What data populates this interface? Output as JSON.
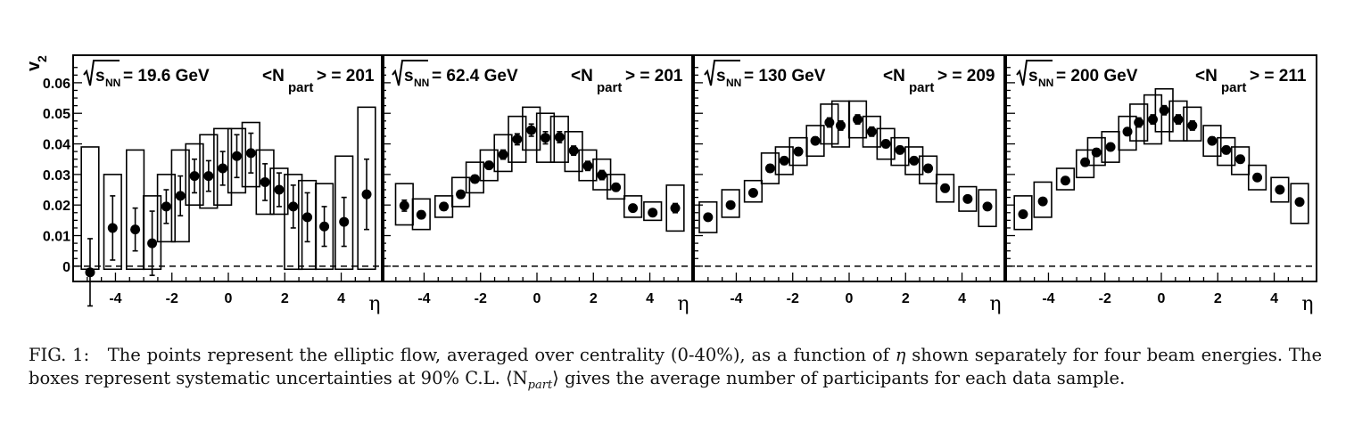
{
  "chart_data": {
    "type": "scatter",
    "y_axis_label": "v",
    "y_axis_label_sub": "2",
    "x_axis_label": "η",
    "xlim": [
      -5.5,
      5.5
    ],
    "ylim": [
      -0.005,
      0.069
    ],
    "x_ticks": [
      -4,
      -2,
      0,
      2,
      4
    ],
    "x_tick_labels": [
      "-4",
      "-2",
      "0",
      "2",
      "4"
    ],
    "y_ticks": [
      0,
      0.01,
      0.02,
      0.03,
      0.04,
      0.05,
      0.06
    ],
    "y_tick_labels": [
      "0",
      "0.01",
      "0.02",
      "0.03",
      "0.04",
      "0.05",
      "0.06"
    ],
    "reference_line": {
      "y": 0,
      "style": "dashed"
    },
    "panels": [
      {
        "energy_value": "19.6 GeV",
        "npart_value": "201",
        "points": [
          {
            "x": -4.9,
            "y": -0.002,
            "err": 0.011,
            "box_lo": -0.001,
            "box_hi": 0.039
          },
          {
            "x": -4.1,
            "y": 0.0125,
            "err": 0.0105,
            "box_lo": -0.001,
            "box_hi": 0.03
          },
          {
            "x": -3.3,
            "y": 0.012,
            "err": 0.007,
            "box_lo": -0.001,
            "box_hi": 0.038
          },
          {
            "x": -2.7,
            "y": 0.0075,
            "err": 0.0105,
            "box_lo": -0.001,
            "box_hi": 0.023
          },
          {
            "x": -2.2,
            "y": 0.0195,
            "err": 0.0055,
            "box_lo": 0.008,
            "box_hi": 0.03
          },
          {
            "x": -1.7,
            "y": 0.023,
            "err": 0.0065,
            "box_lo": 0.008,
            "box_hi": 0.038
          },
          {
            "x": -1.2,
            "y": 0.0295,
            "err": 0.0055,
            "box_lo": 0.02,
            "box_hi": 0.04
          },
          {
            "x": -0.7,
            "y": 0.0295,
            "err": 0.005,
            "box_lo": 0.019,
            "box_hi": 0.043
          },
          {
            "x": -0.2,
            "y": 0.032,
            "err": 0.0055,
            "box_lo": 0.02,
            "box_hi": 0.045
          },
          {
            "x": 0.3,
            "y": 0.036,
            "err": 0.007,
            "box_lo": 0.024,
            "box_hi": 0.045
          },
          {
            "x": 0.8,
            "y": 0.037,
            "err": 0.0065,
            "box_lo": 0.026,
            "box_hi": 0.047
          },
          {
            "x": 1.3,
            "y": 0.0275,
            "err": 0.006,
            "box_lo": 0.017,
            "box_hi": 0.038
          },
          {
            "x": 1.8,
            "y": 0.025,
            "err": 0.0055,
            "box_lo": 0.017,
            "box_hi": 0.032
          },
          {
            "x": 2.3,
            "y": 0.0195,
            "err": 0.007,
            "box_lo": -0.001,
            "box_hi": 0.03
          },
          {
            "x": 2.8,
            "y": 0.016,
            "err": 0.008,
            "box_lo": -0.001,
            "box_hi": 0.028
          },
          {
            "x": 3.4,
            "y": 0.013,
            "err": 0.0065,
            "box_lo": -0.001,
            "box_hi": 0.027
          },
          {
            "x": 4.1,
            "y": 0.0145,
            "err": 0.008,
            "box_lo": -0.001,
            "box_hi": 0.036
          },
          {
            "x": 4.9,
            "y": 0.0235,
            "err": 0.0115,
            "box_lo": -0.001,
            "box_hi": 0.052
          }
        ]
      },
      {
        "energy_value": "62.4 GeV",
        "npart_value": "201",
        "points": [
          {
            "x": -4.7,
            "y": 0.0198,
            "err": 0.0018,
            "box_lo": 0.0135,
            "box_hi": 0.027
          },
          {
            "x": -4.1,
            "y": 0.0168,
            "err": 0.0012,
            "box_lo": 0.012,
            "box_hi": 0.022
          },
          {
            "x": -3.3,
            "y": 0.0195,
            "err": 0.0012,
            "box_lo": 0.016,
            "box_hi": 0.023
          },
          {
            "x": -2.7,
            "y": 0.0235,
            "err": 0.0012,
            "box_lo": 0.0195,
            "box_hi": 0.029
          },
          {
            "x": -2.2,
            "y": 0.0285,
            "err": 0.0012,
            "box_lo": 0.024,
            "box_hi": 0.034
          },
          {
            "x": -1.7,
            "y": 0.033,
            "err": 0.0012,
            "box_lo": 0.028,
            "box_hi": 0.038
          },
          {
            "x": -1.2,
            "y": 0.0365,
            "err": 0.0015,
            "box_lo": 0.031,
            "box_hi": 0.043
          },
          {
            "x": -0.7,
            "y": 0.0415,
            "err": 0.0018,
            "box_lo": 0.034,
            "box_hi": 0.049
          },
          {
            "x": -0.2,
            "y": 0.0445,
            "err": 0.002,
            "box_lo": 0.038,
            "box_hi": 0.052
          },
          {
            "x": 0.3,
            "y": 0.042,
            "err": 0.002,
            "box_lo": 0.034,
            "box_hi": 0.05
          },
          {
            "x": 0.8,
            "y": 0.0422,
            "err": 0.0018,
            "box_lo": 0.034,
            "box_hi": 0.049
          },
          {
            "x": 1.3,
            "y": 0.0378,
            "err": 0.0015,
            "box_lo": 0.031,
            "box_hi": 0.044
          },
          {
            "x": 1.8,
            "y": 0.0328,
            "err": 0.0015,
            "box_lo": 0.028,
            "box_hi": 0.038
          },
          {
            "x": 2.3,
            "y": 0.0298,
            "err": 0.0015,
            "box_lo": 0.025,
            "box_hi": 0.035
          },
          {
            "x": 2.8,
            "y": 0.0258,
            "err": 0.0012,
            "box_lo": 0.022,
            "box_hi": 0.03
          },
          {
            "x": 3.4,
            "y": 0.019,
            "err": 0.001,
            "box_lo": 0.016,
            "box_hi": 0.023
          },
          {
            "x": 4.1,
            "y": 0.0175,
            "err": 0.001,
            "box_lo": 0.015,
            "box_hi": 0.021
          },
          {
            "x": 4.9,
            "y": 0.019,
            "err": 0.0015,
            "box_lo": 0.0115,
            "box_hi": 0.0265
          }
        ]
      },
      {
        "energy_value": "130 GeV",
        "npart_value": "209",
        "points": [
          {
            "x": -5.0,
            "y": 0.016,
            "err": 0.001,
            "box_lo": 0.011,
            "box_hi": 0.021
          },
          {
            "x": -4.2,
            "y": 0.02,
            "err": 0.001,
            "box_lo": 0.016,
            "box_hi": 0.025
          },
          {
            "x": -3.4,
            "y": 0.024,
            "err": 0.001,
            "box_lo": 0.021,
            "box_hi": 0.028
          },
          {
            "x": -2.8,
            "y": 0.032,
            "err": 0.0012,
            "box_lo": 0.027,
            "box_hi": 0.037
          },
          {
            "x": -2.3,
            "y": 0.0345,
            "err": 0.0012,
            "box_lo": 0.03,
            "box_hi": 0.039
          },
          {
            "x": -1.8,
            "y": 0.0375,
            "err": 0.0012,
            "box_lo": 0.033,
            "box_hi": 0.042
          },
          {
            "x": -1.2,
            "y": 0.041,
            "err": 0.0012,
            "box_lo": 0.036,
            "box_hi": 0.046
          },
          {
            "x": -0.7,
            "y": 0.047,
            "err": 0.0015,
            "box_lo": 0.04,
            "box_hi": 0.053
          },
          {
            "x": -0.3,
            "y": 0.046,
            "err": 0.0015,
            "box_lo": 0.039,
            "box_hi": 0.054
          },
          {
            "x": 0.3,
            "y": 0.048,
            "err": 0.0015,
            "box_lo": 0.042,
            "box_hi": 0.054
          },
          {
            "x": 0.8,
            "y": 0.044,
            "err": 0.0015,
            "box_lo": 0.039,
            "box_hi": 0.049
          },
          {
            "x": 1.3,
            "y": 0.04,
            "err": 0.0012,
            "box_lo": 0.035,
            "box_hi": 0.045
          },
          {
            "x": 1.8,
            "y": 0.038,
            "err": 0.0012,
            "box_lo": 0.033,
            "box_hi": 0.042
          },
          {
            "x": 2.3,
            "y": 0.0345,
            "err": 0.0012,
            "box_lo": 0.03,
            "box_hi": 0.039
          },
          {
            "x": 2.8,
            "y": 0.032,
            "err": 0.0012,
            "box_lo": 0.027,
            "box_hi": 0.036
          },
          {
            "x": 3.4,
            "y": 0.0255,
            "err": 0.001,
            "box_lo": 0.021,
            "box_hi": 0.03
          },
          {
            "x": 4.2,
            "y": 0.022,
            "err": 0.001,
            "box_lo": 0.018,
            "box_hi": 0.026
          },
          {
            "x": 4.9,
            "y": 0.0195,
            "err": 0.001,
            "box_lo": 0.013,
            "box_hi": 0.025
          }
        ]
      },
      {
        "energy_value": "200 GeV",
        "npart_value": "211",
        "points": [
          {
            "x": -4.9,
            "y": 0.017,
            "err": 0.001,
            "box_lo": 0.012,
            "box_hi": 0.023
          },
          {
            "x": -4.2,
            "y": 0.0212,
            "err": 0.001,
            "box_lo": 0.016,
            "box_hi": 0.0275
          },
          {
            "x": -3.4,
            "y": 0.028,
            "err": 0.001,
            "box_lo": 0.025,
            "box_hi": 0.032
          },
          {
            "x": -2.7,
            "y": 0.034,
            "err": 0.0012,
            "box_lo": 0.029,
            "box_hi": 0.038
          },
          {
            "x": -2.3,
            "y": 0.0372,
            "err": 0.0012,
            "box_lo": 0.033,
            "box_hi": 0.042
          },
          {
            "x": -1.8,
            "y": 0.039,
            "err": 0.0012,
            "box_lo": 0.034,
            "box_hi": 0.044
          },
          {
            "x": -1.2,
            "y": 0.044,
            "err": 0.0012,
            "box_lo": 0.038,
            "box_hi": 0.049
          },
          {
            "x": -0.8,
            "y": 0.047,
            "err": 0.0015,
            "box_lo": 0.041,
            "box_hi": 0.053
          },
          {
            "x": -0.3,
            "y": 0.048,
            "err": 0.0015,
            "box_lo": 0.04,
            "box_hi": 0.056
          },
          {
            "x": 0.1,
            "y": 0.051,
            "err": 0.0015,
            "box_lo": 0.044,
            "box_hi": 0.058
          },
          {
            "x": 0.6,
            "y": 0.048,
            "err": 0.0015,
            "box_lo": 0.041,
            "box_hi": 0.054
          },
          {
            "x": 1.1,
            "y": 0.046,
            "err": 0.0015,
            "box_lo": 0.041,
            "box_hi": 0.052
          },
          {
            "x": 1.8,
            "y": 0.041,
            "err": 0.0012,
            "box_lo": 0.036,
            "box_hi": 0.046
          },
          {
            "x": 2.3,
            "y": 0.038,
            "err": 0.0012,
            "box_lo": 0.033,
            "box_hi": 0.042
          },
          {
            "x": 2.8,
            "y": 0.035,
            "err": 0.0012,
            "box_lo": 0.03,
            "box_hi": 0.039
          },
          {
            "x": 3.4,
            "y": 0.029,
            "err": 0.001,
            "box_lo": 0.025,
            "box_hi": 0.033
          },
          {
            "x": 4.2,
            "y": 0.025,
            "err": 0.001,
            "box_lo": 0.021,
            "box_hi": 0.029
          },
          {
            "x": 4.9,
            "y": 0.021,
            "err": 0.001,
            "box_lo": 0.014,
            "box_hi": 0.027
          }
        ]
      }
    ]
  },
  "legend_text": {
    "sqrt_label": "s",
    "sqrt_sub": "NN",
    "equals": " = ",
    "npart_open": "<N",
    "npart_sub": "part",
    "npart_close": "> = "
  },
  "caption": {
    "fig_label": "FIG. 1:",
    "part1": "The points represent the elliptic flow, averaged over centrality (0-40%), as a function of ",
    "eta": "η",
    "part2": " shown separately for four beam energies. The boxes represent systematic uncertainties at 90% C.L. ",
    "npart_expr_open": "⟨N",
    "npart_expr_sub": "part",
    "npart_expr_close": "⟩",
    "part3": " gives the average number of participants for each data sample."
  }
}
